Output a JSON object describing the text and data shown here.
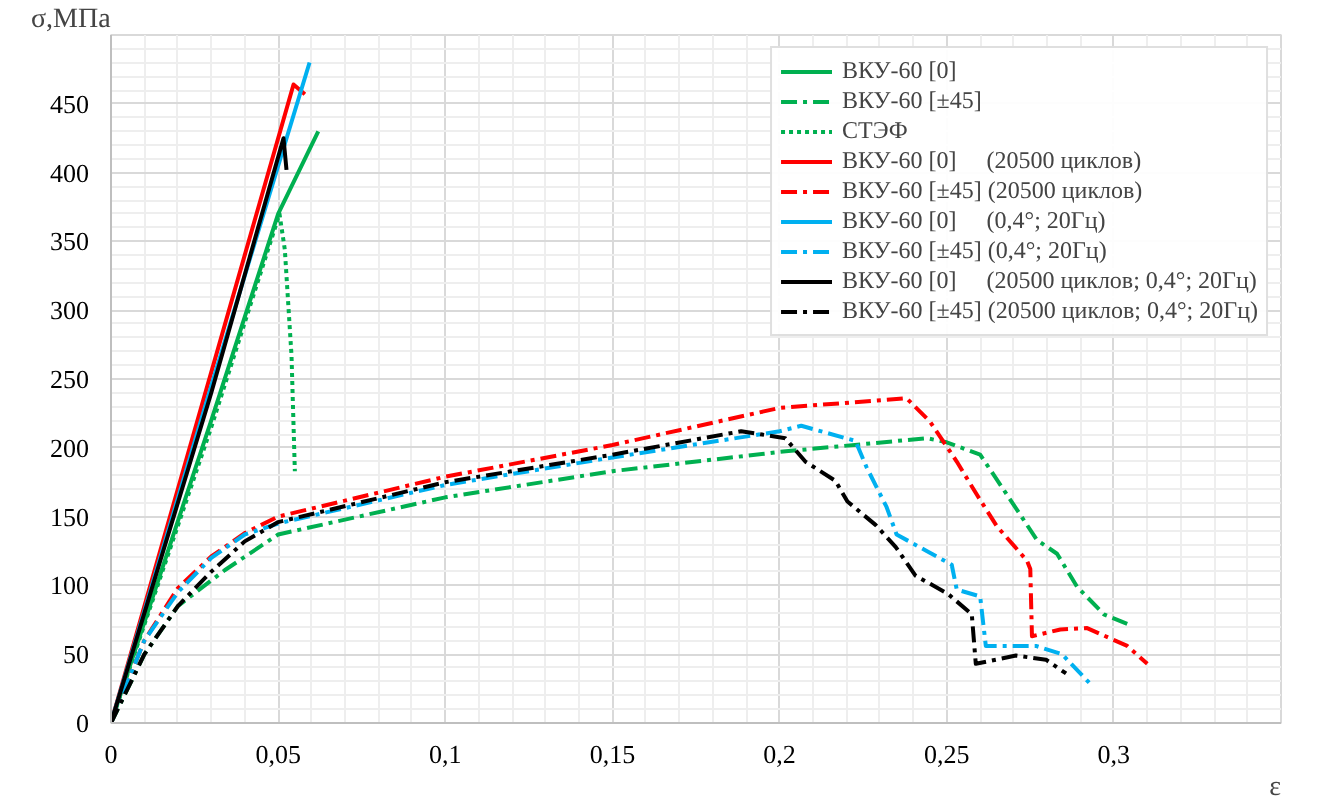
{
  "chart_data": {
    "type": "line",
    "xlabel": "ε",
    "ylabel": "σ,МПа",
    "xlim": [
      0,
      0.35
    ],
    "ylim": [
      0,
      500
    ],
    "xticks": [
      0,
      {
        "value": 0.05,
        "label": "0,05"
      },
      {
        "value": 0.1,
        "label": "0,1"
      },
      {
        "value": 0.15,
        "label": "0,15"
      },
      {
        "value": 0.2,
        "label": "0,2"
      },
      {
        "value": 0.25,
        "label": "0,25"
      },
      {
        "value": 0.3,
        "label": "0,3"
      },
      {
        "value": 0.35,
        "label": null
      }
    ],
    "yticks": [
      0,
      50,
      100,
      150,
      200,
      250,
      300,
      350,
      400,
      450,
      {
        "value": 500,
        "label": null
      }
    ],
    "grid": true,
    "legend": "top right",
    "series": [
      {
        "name": "ВКУ-60 [0]",
        "color": "#00b050",
        "line_style": "solid",
        "x": [
          0,
          0.03,
          0.05,
          0.062
        ],
        "values": [
          0,
          220,
          370,
          430
        ]
      },
      {
        "name": "ВКУ-60 [±45]",
        "color": "#00b050",
        "line_style": "dashed",
        "x": [
          0,
          0.01,
          0.02,
          0.034,
          0.05,
          0.1,
          0.15,
          0.2,
          0.244,
          0.25,
          0.26,
          0.268,
          0.277,
          0.283,
          0.289,
          0.297,
          0.304
        ],
        "values": [
          0,
          50,
          85,
          111,
          137,
          164,
          183,
          197,
          207,
          204,
          195,
          166,
          133,
          123,
          99,
          79,
          72
        ]
      },
      {
        "name": "СТЭФ",
        "color": "#00b050",
        "line_style": "dotted",
        "x": [
          0,
          0.03,
          0.0504,
          0.052,
          0.054,
          0.055
        ],
        "values": [
          0,
          215,
          370,
          344,
          267,
          183
        ]
      },
      {
        "name": "ВКУ-60 [0]     (20500 циклов)",
        "color": "#ff0000",
        "line_style": "solid",
        "x": [
          0,
          0.03,
          0.0546,
          0.058
        ],
        "values": [
          0,
          255,
          464,
          457
        ]
      },
      {
        "name": "ВКУ-60 [±45] (20500 циклов)",
        "color": "#ff0000",
        "line_style": "dashed",
        "x": [
          0,
          0.01,
          0.02,
          0.03,
          0.04,
          0.05,
          0.1,
          0.15,
          0.2,
          0.238,
          0.245,
          0.253,
          0.259,
          0.265,
          0.274,
          0.275,
          0.2755,
          0.284,
          0.292,
          0.304,
          0.31
        ],
        "values": [
          0,
          60,
          98,
          121,
          138,
          150,
          179,
          202,
          229,
          236,
          219,
          190,
          166,
          143,
          118,
          112,
          63,
          68,
          69,
          56,
          43
        ]
      },
      {
        "name": "ВКУ-60 [0]     (0,4°; 20Гц)",
        "color": "#00b0f0",
        "line_style": "solid",
        "x": [
          0,
          0.03,
          0.0594
        ],
        "values": [
          0,
          245,
          480
        ]
      },
      {
        "name": "ВКУ-60 [±45] (0,4°; 20Гц)",
        "color": "#00b0f0",
        "line_style": "dashed",
        "x": [
          0,
          0.01,
          0.02,
          0.03,
          0.04,
          0.05,
          0.1,
          0.15,
          0.2,
          0.2065,
          0.2227,
          0.226,
          0.232,
          0.235,
          0.244,
          0.2515,
          0.253,
          0.26,
          0.2617,
          0.2767,
          0.2845,
          0.2935
        ],
        "values": [
          0,
          60,
          95,
          120,
          137,
          145,
          173,
          193,
          212,
          216,
          205,
          186,
          157,
          137,
          125,
          115,
          97,
          92,
          56,
          56,
          50,
          27
        ]
      },
      {
        "name": "ВКУ-60 [0]     (20500 циклов; 0,4°; 20Гц)",
        "color": "#000000",
        "line_style": "solid",
        "x": [
          0,
          0.03,
          0.0516,
          0.0525
        ],
        "values": [
          0,
          240,
          425,
          402
        ]
      },
      {
        "name": "ВКУ-60 [±45] (20500 циклов; 0,4°; 20Гц)",
        "color": "#000000",
        "line_style": "dashed",
        "x": [
          0,
          0.01,
          0.02,
          0.03,
          0.04,
          0.05,
          0.1,
          0.15,
          0.1885,
          0.2017,
          0.2077,
          0.2167,
          0.2203,
          0.2287,
          0.2347,
          0.2407,
          0.2503,
          0.2575,
          0.2587,
          0.2707,
          0.2797,
          0.2857
        ],
        "values": [
          0,
          50,
          85,
          110,
          132,
          146,
          175,
          195,
          212,
          207,
          190,
          176,
          161,
          144,
          128,
          107,
          94,
          79,
          43,
          49,
          46,
          36
        ]
      }
    ]
  }
}
